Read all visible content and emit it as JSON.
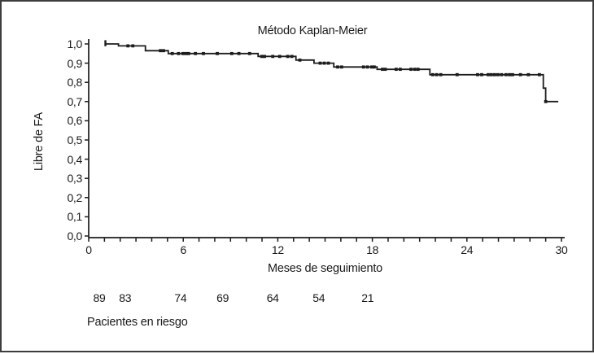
{
  "chart_data": {
    "type": "line",
    "subtype": "kaplan-meier-step",
    "title": "Método Kaplan-Meier",
    "xlabel": "Meses de seguimiento",
    "ylabel": "Libre de FA",
    "xlim": [
      0,
      30
    ],
    "ylim": [
      0.0,
      1.0
    ],
    "grid": false,
    "legend": "none",
    "line_color": "#1c1c1c",
    "x_ticks": {
      "minor_every": 1,
      "major": [
        {
          "value": 0,
          "label": "0"
        },
        {
          "value": 6,
          "label": "6"
        },
        {
          "value": 12,
          "label": "12"
        },
        {
          "value": 18,
          "label": "18"
        },
        {
          "value": 24,
          "label": "24"
        },
        {
          "value": 30,
          "label": "30"
        }
      ]
    },
    "y_ticks": [
      {
        "value": 1.0,
        "label": "1,0"
      },
      {
        "value": 0.9,
        "label": "0,9"
      },
      {
        "value": 0.8,
        "label": "0,8"
      },
      {
        "value": 0.7,
        "label": "0,7"
      },
      {
        "value": 0.6,
        "label": "0,6"
      },
      {
        "value": 0.5,
        "label": "0,5"
      },
      {
        "value": 0.4,
        "label": "0,4"
      },
      {
        "value": 0.3,
        "label": "0,3"
      },
      {
        "value": 0.2,
        "label": "0,2"
      },
      {
        "value": 0.1,
        "label": "0,1"
      },
      {
        "value": 0.0,
        "label": "0,0"
      }
    ],
    "curve_steps": [
      [
        1.06,
        1.0
      ],
      [
        1.89,
        0.99
      ],
      [
        3.6,
        0.965
      ],
      [
        5.05,
        0.95
      ],
      [
        10.75,
        0.935
      ],
      [
        13.15,
        0.916
      ],
      [
        14.3,
        0.9
      ],
      [
        15.55,
        0.88
      ],
      [
        18.3,
        0.868
      ],
      [
        21.65,
        0.84
      ],
      [
        28.85,
        0.77
      ],
      [
        29.0,
        0.7
      ]
    ],
    "end_month": 29.8,
    "censor_marks": [
      [
        1.06,
        1.0
      ],
      [
        2.49,
        0.99
      ],
      [
        2.8,
        0.99
      ],
      [
        4.55,
        0.965
      ],
      [
        4.75,
        0.965
      ],
      [
        5.3,
        0.95
      ],
      [
        5.7,
        0.95
      ],
      [
        5.98,
        0.95
      ],
      [
        6.17,
        0.95
      ],
      [
        6.34,
        0.95
      ],
      [
        6.77,
        0.95
      ],
      [
        7.28,
        0.95
      ],
      [
        8.16,
        0.95
      ],
      [
        9.08,
        0.95
      ],
      [
        9.53,
        0.95
      ],
      [
        10.21,
        0.95
      ],
      [
        10.98,
        0.935
      ],
      [
        11.16,
        0.935
      ],
      [
        11.68,
        0.935
      ],
      [
        12.12,
        0.935
      ],
      [
        12.63,
        0.935
      ],
      [
        12.89,
        0.935
      ],
      [
        13.4,
        0.916
      ],
      [
        14.69,
        0.9
      ],
      [
        14.95,
        0.9
      ],
      [
        15.21,
        0.9
      ],
      [
        15.8,
        0.88
      ],
      [
        16.05,
        0.88
      ],
      [
        17.44,
        0.88
      ],
      [
        17.69,
        0.88
      ],
      [
        17.96,
        0.88
      ],
      [
        18.12,
        0.88
      ],
      [
        18.64,
        0.868
      ],
      [
        18.82,
        0.868
      ],
      [
        19.51,
        0.868
      ],
      [
        19.77,
        0.868
      ],
      [
        20.45,
        0.868
      ],
      [
        20.69,
        0.868
      ],
      [
        20.9,
        0.868
      ],
      [
        21.83,
        0.84
      ],
      [
        22.08,
        0.84
      ],
      [
        22.34,
        0.84
      ],
      [
        23.38,
        0.84
      ],
      [
        24.68,
        0.84
      ],
      [
        24.94,
        0.84
      ],
      [
        25.35,
        0.84
      ],
      [
        25.55,
        0.84
      ],
      [
        25.76,
        0.84
      ],
      [
        25.97,
        0.84
      ],
      [
        26.2,
        0.84
      ],
      [
        26.48,
        0.84
      ],
      [
        26.7,
        0.84
      ],
      [
        26.9,
        0.84
      ],
      [
        27.4,
        0.84
      ],
      [
        27.9,
        0.84
      ],
      [
        28.6,
        0.84
      ],
      [
        29.0,
        0.7
      ]
    ],
    "risk_table": {
      "label": "Pacientes en riesgo",
      "values": [
        "89",
        "83",
        "74",
        "69",
        "64",
        "54",
        "21"
      ],
      "at_months": [
        0.67,
        2.31,
        5.83,
        8.5,
        11.68,
        14.6,
        17.7
      ]
    }
  }
}
